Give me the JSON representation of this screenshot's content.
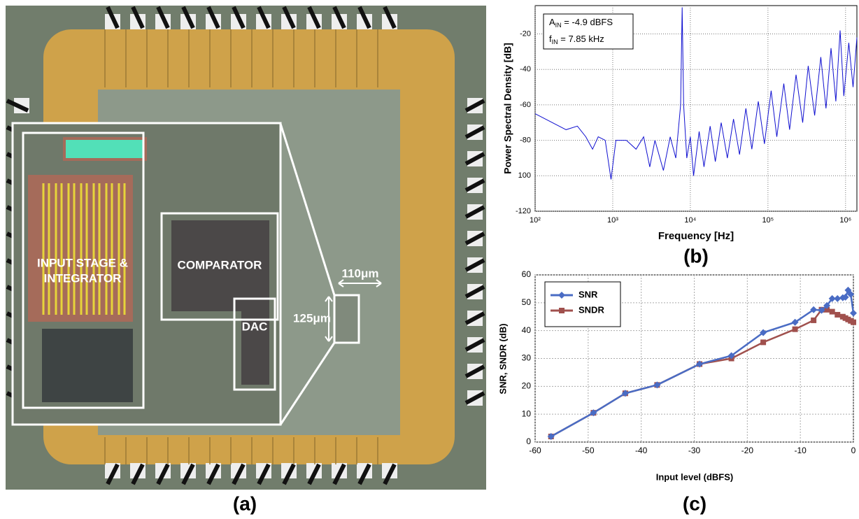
{
  "photo": {
    "labels": [
      "INPUT STAGE &",
      "INTEGRATOR",
      "COMPARATOR",
      "DAC",
      "110μm",
      "125μm"
    ],
    "caption": "(a)"
  },
  "chart_data": [
    {
      "type": "line",
      "x_scale": "log",
      "caption": "(b)",
      "x_label": "Frequency [Hz]",
      "y_label": "Power Spectral Density [dB]",
      "annotations": [
        {
          "base": "A",
          "sub": "IN",
          "text": " = -4.9 dBFS"
        },
        {
          "base": "f",
          "sub": "IN",
          "text": " = 7.85 kHz"
        }
      ],
      "color": "#1010d0",
      "grid": true,
      "xlim": [
        100,
        1400000
      ],
      "ylim": [
        -120,
        -4
      ],
      "xticks": [
        {
          "value": 100,
          "label": "10²"
        },
        {
          "value": 1000,
          "label": "10³"
        },
        {
          "value": 10000,
          "label": "10⁴"
        },
        {
          "value": 100000,
          "label": "10⁵"
        },
        {
          "value": 1000000,
          "label": "10⁶"
        }
      ],
      "yticks": [
        -20,
        -40,
        -60,
        -80,
        {
          "value": -100,
          "label": "100"
        },
        -120
      ],
      "x": [
        100,
        250,
        350,
        450,
        550,
        650,
        800,
        950,
        1100,
        1500,
        2000,
        2500,
        3000,
        3500,
        4500,
        5500,
        6500,
        7500,
        7850,
        8200,
        9000,
        10000,
        11000,
        13000,
        15000,
        18000,
        21000,
        25000,
        30000,
        36000,
        43000,
        52000,
        62000,
        75000,
        90000,
        110000,
        130000,
        160000,
        190000,
        230000,
        280000,
        330000,
        400000,
        480000,
        560000,
        650000,
        750000,
        850000,
        950000,
        1100000,
        1250000,
        1400000
      ],
      "values": [
        -65,
        -74,
        -72,
        -78,
        -85,
        -78,
        -80,
        -102,
        -80,
        -80,
        -85,
        -78,
        -95,
        -80,
        -97,
        -78,
        -90,
        -60,
        -5,
        -60,
        -90,
        -78,
        -100,
        -75,
        -95,
        -72,
        -92,
        -70,
        -90,
        -68,
        -88,
        -62,
        -85,
        -58,
        -82,
        -52,
        -78,
        -48,
        -74,
        -43,
        -70,
        -38,
        -66,
        -33,
        -62,
        -28,
        -58,
        -18,
        -55,
        -25,
        -50,
        -22
      ]
    },
    {
      "type": "line",
      "caption": "(c)",
      "x_label": "Input level  (dBFS)",
      "y_label": "SNR, SNDR (dB)",
      "grid": true,
      "legend": "top-left",
      "xlim": [
        -60,
        0
      ],
      "ylim": [
        0,
        60
      ],
      "xticks": [
        -60,
        -50,
        -40,
        -30,
        -20,
        -10,
        0
      ],
      "yticks": [
        0,
        10,
        20,
        30,
        40,
        50,
        60
      ],
      "x": [
        -57,
        -49,
        -43,
        -37,
        -29,
        -23,
        -17,
        -11,
        -7.5,
        -6,
        -5,
        -4,
        -3,
        -2,
        -1.5,
        -1,
        -0.5,
        0
      ],
      "series": [
        {
          "name": "SNR",
          "color": "#4a6cc4",
          "marker": "diamond",
          "values": [
            2,
            10.5,
            17.5,
            20.5,
            28,
            31,
            39.3,
            43,
            47.5,
            47.3,
            49,
            51.5,
            51.5,
            51.8,
            52,
            54.5,
            53,
            46.3
          ]
        },
        {
          "name": "SNDR",
          "color": "#a0504d",
          "marker": "square",
          "values": [
            2,
            10.5,
            17.5,
            20.5,
            28,
            30,
            35.8,
            40.5,
            43.7,
            47.5,
            47.5,
            46.8,
            45.7,
            45,
            44.5,
            44,
            43.5,
            43
          ]
        }
      ]
    }
  ]
}
